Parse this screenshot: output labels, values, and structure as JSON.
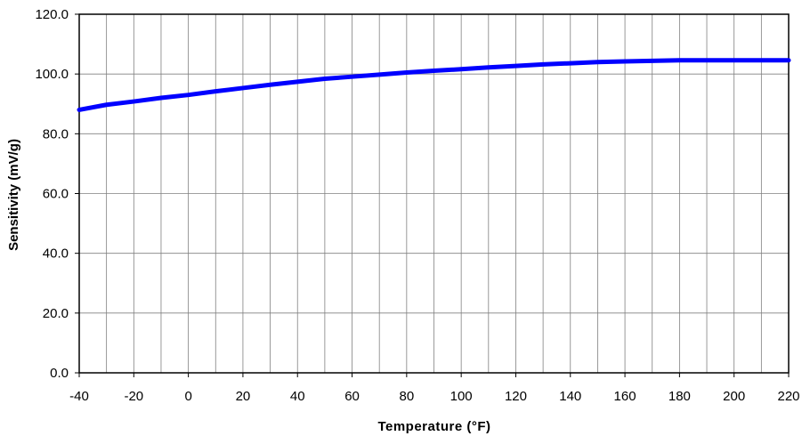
{
  "chart_data": {
    "type": "line",
    "title": "",
    "xlabel": "Temperature (°F)",
    "ylabel": "Sensitivity (mV/g)",
    "xlim": [
      -40,
      220
    ],
    "ylim": [
      0,
      120
    ],
    "x_ticks": [
      -40,
      -20,
      0,
      20,
      40,
      60,
      80,
      100,
      120,
      140,
      160,
      180,
      200,
      220
    ],
    "x_tick_labels": [
      "-40",
      "-20",
      "0",
      "20",
      "40",
      "60",
      "80",
      "100",
      "120",
      "140",
      "160",
      "180",
      "200",
      "220"
    ],
    "y_ticks": [
      0,
      20,
      40,
      60,
      80,
      100,
      120
    ],
    "y_tick_labels": [
      "0.0",
      "20.0",
      "40.0",
      "60.0",
      "80.0",
      "100.0",
      "120.0"
    ],
    "x_grid_step": 10,
    "grid": true,
    "legend": "none",
    "series": [
      {
        "color": "#0000ff",
        "x": [
          -40,
          -30,
          -20,
          -10,
          0,
          10,
          20,
          30,
          40,
          50,
          60,
          70,
          80,
          90,
          100,
          110,
          120,
          130,
          140,
          150,
          160,
          170,
          180,
          190,
          200,
          210,
          220
        ],
        "y": [
          88.0,
          89.7,
          90.8,
          92.0,
          93.0,
          94.2,
          95.3,
          96.4,
          97.4,
          98.4,
          99.1,
          99.8,
          100.5,
          101.1,
          101.6,
          102.2,
          102.7,
          103.2,
          103.6,
          104.0,
          104.2,
          104.4,
          104.6,
          104.6,
          104.6,
          104.6,
          104.6
        ]
      }
    ]
  }
}
